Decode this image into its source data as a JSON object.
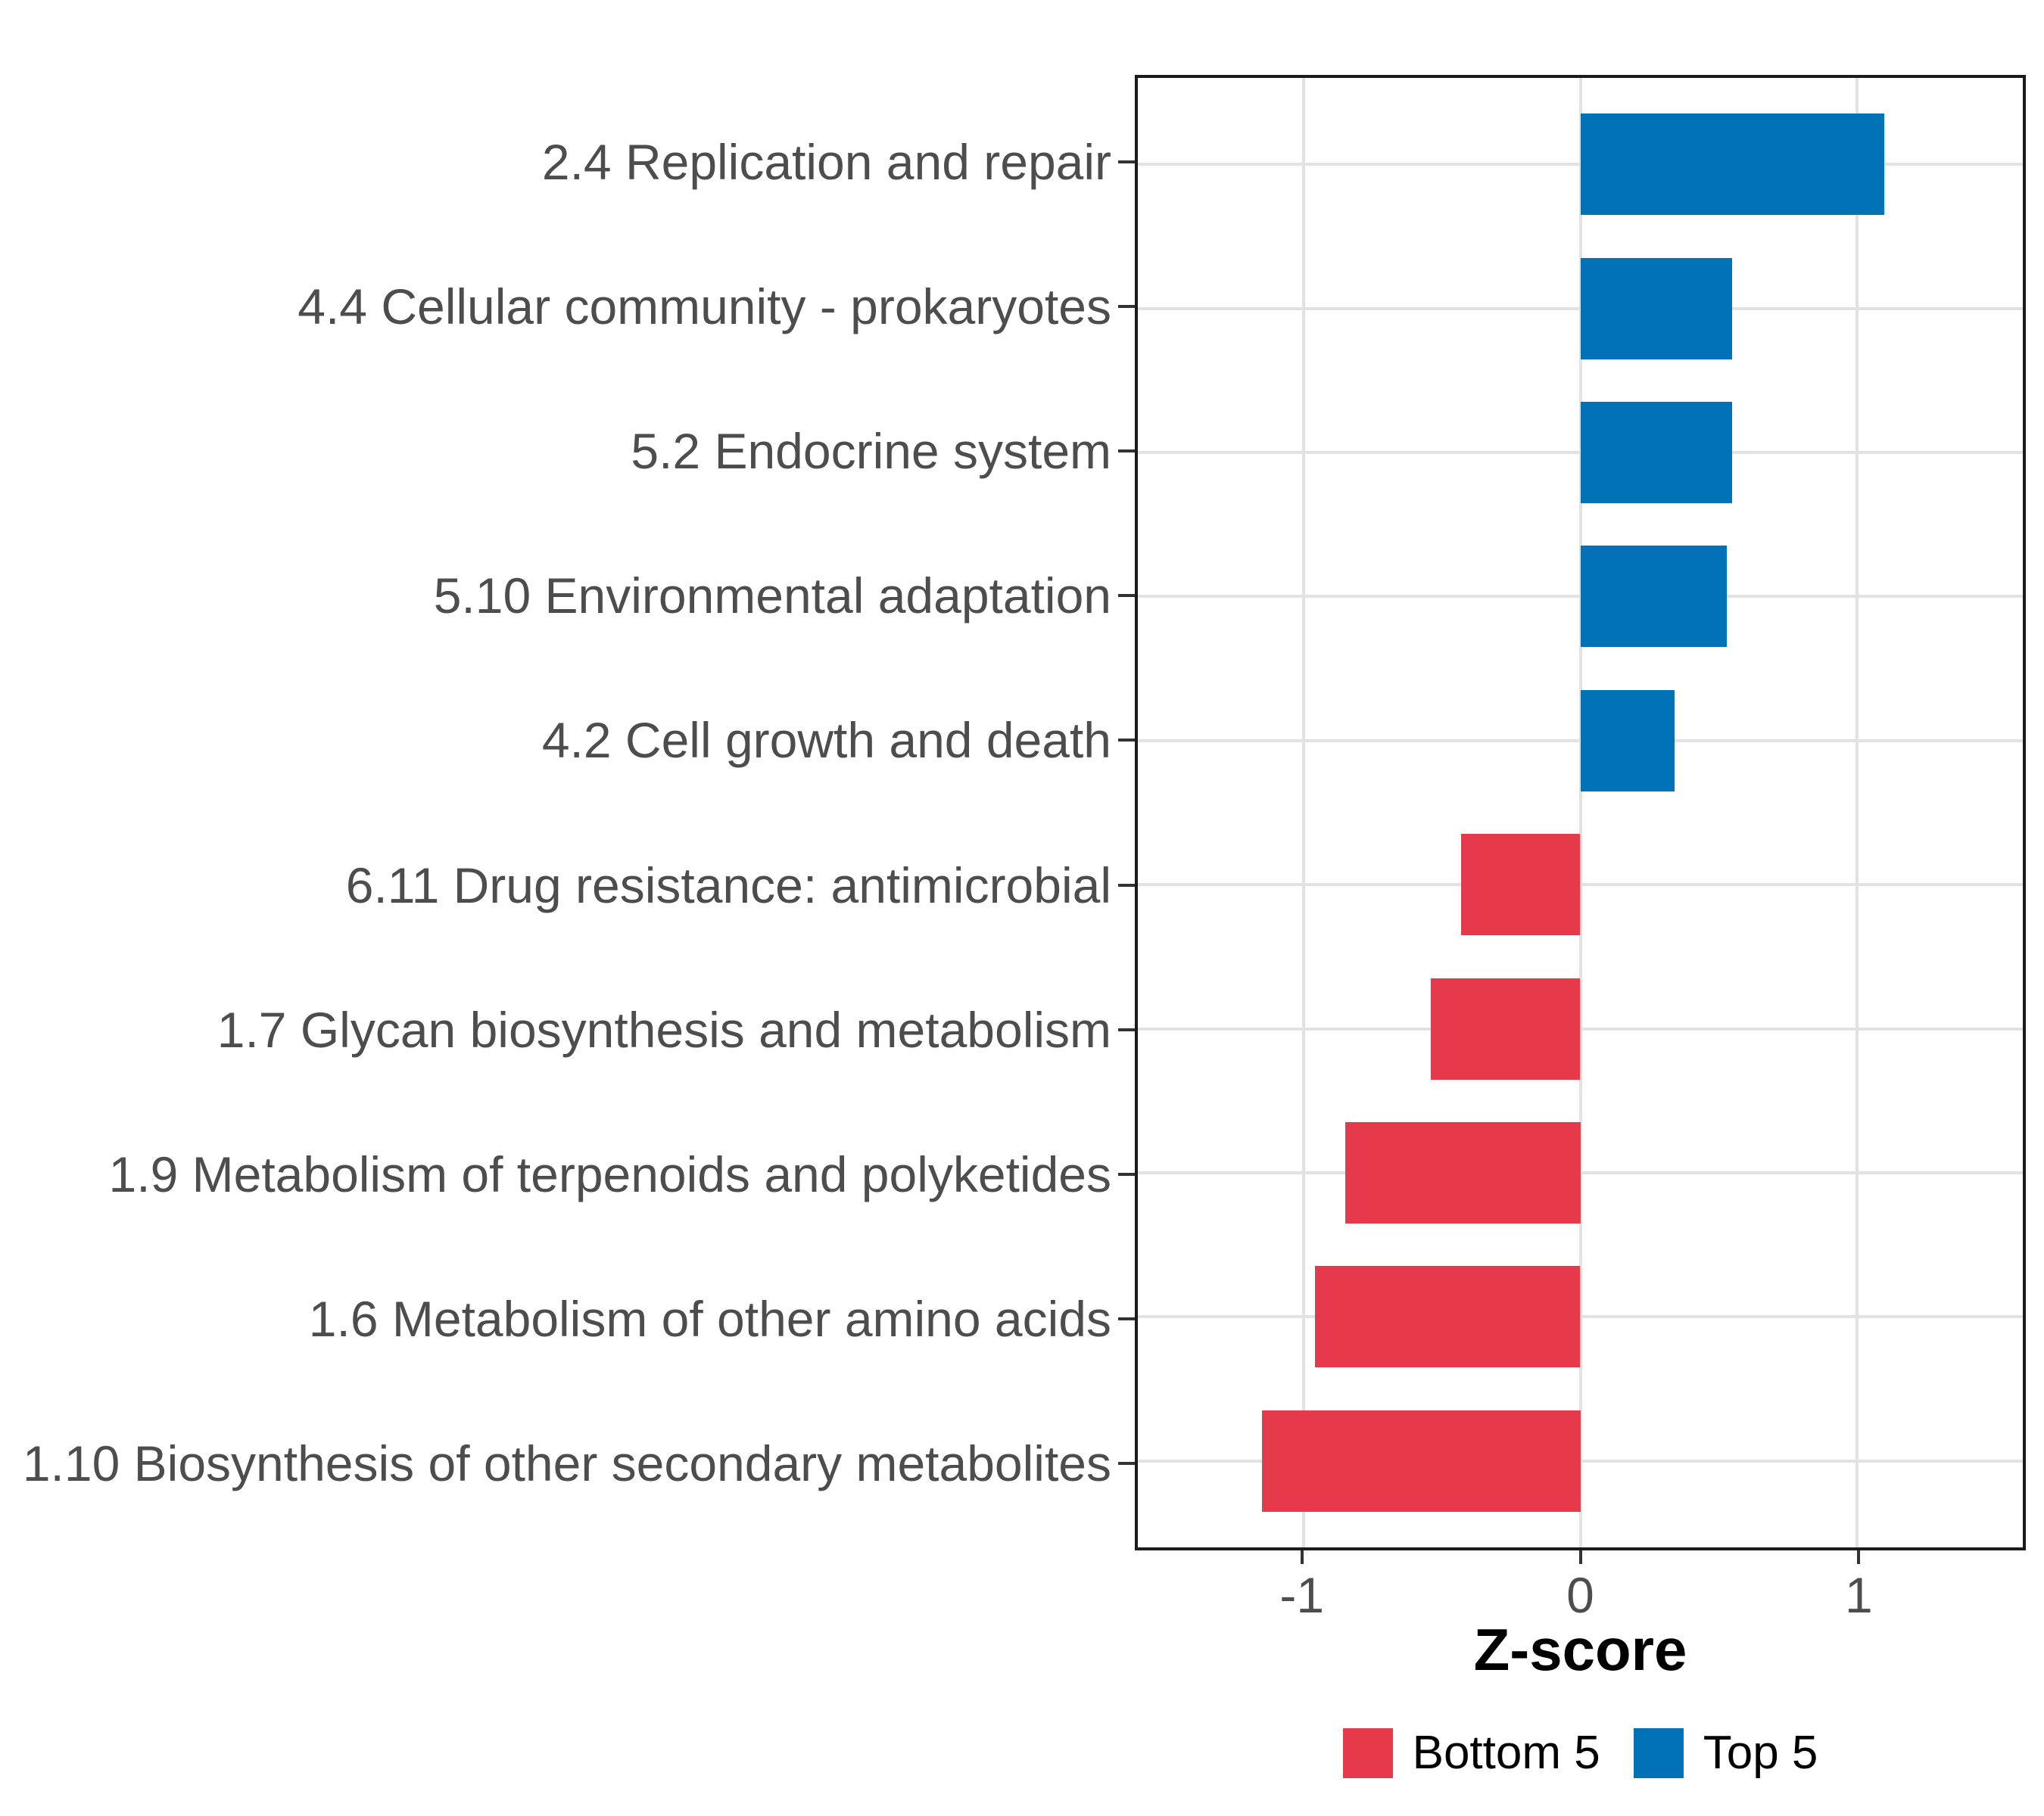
{
  "chart_data": {
    "type": "bar",
    "orientation": "horizontal",
    "xlabel": "Z-score",
    "categories": [
      "2.4 Replication and repair",
      "4.4 Cellular community - prokaryotes",
      "5.2 Endocrine system",
      "5.10 Environmental adaptation",
      "4.2 Cell growth and death",
      "6.11 Drug resistance: antimicrobial",
      "1.7 Glycan biosynthesis and metabolism",
      "1.9 Metabolism of terpenoids and polyketides",
      "1.6 Metabolism of other amino acids",
      "1.10 Biosynthesis of other secondary metabolites"
    ],
    "values": [
      1.1,
      0.55,
      0.55,
      0.53,
      0.34,
      -0.43,
      -0.54,
      -0.85,
      -0.96,
      -1.15
    ],
    "groups": [
      "Top 5",
      "Top 5",
      "Top 5",
      "Top 5",
      "Top 5",
      "Bottom 5",
      "Bottom 5",
      "Bottom 5",
      "Bottom 5",
      "Bottom 5"
    ],
    "color_map": {
      "Top 5": "#0072B5",
      "Bottom 5": "#E6394B"
    },
    "xlim": [
      -1.6,
      1.6
    ],
    "x_tick_values": [
      -1,
      0,
      1
    ],
    "x_tick_labels": [
      "-1",
      "0",
      "1"
    ],
    "grid": "major-gridlines-on-white",
    "gridline_color": "#E2E2E2",
    "axis_text_color": "#4D4D4D",
    "legend_position": "bottom",
    "legend": [
      {
        "label": "Bottom 5",
        "color": "#E6394B"
      },
      {
        "label": "Top 5",
        "color": "#0072B5"
      }
    ]
  }
}
